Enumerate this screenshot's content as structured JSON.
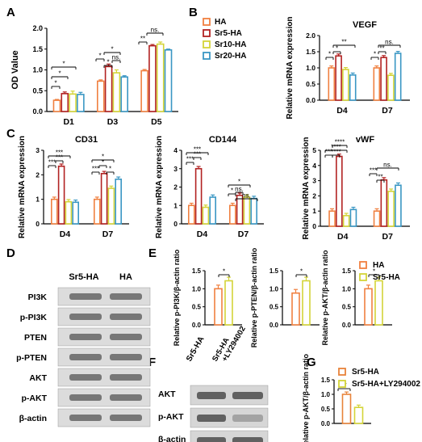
{
  "colors": {
    "HA": "#f08040",
    "Sr5HA": "#b22222",
    "Sr10HA": "#d4d438",
    "Sr20HA": "#3a97c4",
    "G1": "#e8833a"
  },
  "chart_data": [
    {
      "panel": "A",
      "type": "bar",
      "ylabel": "OD Value",
      "ylim": [
        0,
        2.0
      ],
      "yticks": [
        "0.0",
        "0.5",
        "1.0",
        "1.5",
        "2.0"
      ],
      "categories": [
        "D1",
        "D3",
        "D5"
      ],
      "legend": [
        "HA",
        "Sr5-HA",
        "Sr10-HA",
        "Sr20-HA"
      ],
      "series": [
        {
          "name": "HA",
          "values": [
            0.27,
            0.73,
            0.98
          ]
        },
        {
          "name": "Sr5-HA",
          "values": [
            0.43,
            1.08,
            1.58
          ]
        },
        {
          "name": "Sr10-HA",
          "values": [
            0.42,
            0.93,
            1.62
          ]
        },
        {
          "name": "Sr20-HA",
          "values": [
            0.41,
            0.83,
            1.48
          ]
        }
      ],
      "errors": [
        [
          0.02,
          0.04,
          0.07,
          0.05
        ],
        [
          0.03,
          0.06,
          0.07,
          0.03
        ],
        [
          0.03,
          0.03,
          0.05,
          0.02
        ]
      ],
      "annotations": [
        "*",
        "*",
        "*",
        "*",
        "*",
        "*",
        "ns.",
        "*",
        "**",
        "ns."
      ]
    },
    {
      "panel": "B",
      "type": "bar",
      "title": "VEGF",
      "ylabel": "Relative mRNA expression",
      "ylim": [
        0,
        2.0
      ],
      "yticks": [
        "0.0",
        "0.5",
        "1.0",
        "1.5",
        "2.0"
      ],
      "categories": [
        "D4",
        "D7"
      ],
      "series": [
        {
          "name": "HA",
          "values": [
            1.0,
            1.0
          ]
        },
        {
          "name": "Sr5-HA",
          "values": [
            1.37,
            1.32
          ]
        },
        {
          "name": "Sr10-HA",
          "values": [
            0.95,
            0.77
          ]
        },
        {
          "name": "Sr20-HA",
          "values": [
            0.78,
            1.45
          ]
        }
      ],
      "annotations": [
        "*",
        "*",
        "**",
        "*",
        "**",
        "ns."
      ]
    },
    {
      "panel": "C1",
      "type": "bar",
      "title": "CD31",
      "ylabel": "Relative mRNA expression",
      "ylim": [
        0,
        3
      ],
      "yticks": [
        "0",
        "1",
        "2",
        "3"
      ],
      "categories": [
        "D4",
        "D7"
      ],
      "series": [
        {
          "name": "HA",
          "values": [
            1.0,
            1.0
          ]
        },
        {
          "name": "Sr5-HA",
          "values": [
            2.35,
            2.05
          ]
        },
        {
          "name": "Sr10-HA",
          "values": [
            0.9,
            1.45
          ]
        },
        {
          "name": "Sr20-HA",
          "values": [
            0.88,
            1.82
          ]
        }
      ],
      "annotations": [
        "***",
        "***",
        "***",
        "***",
        "*",
        "*",
        "*"
      ]
    },
    {
      "panel": "C2",
      "type": "bar",
      "title": "CD144",
      "ylabel": "Relative mRNA expression",
      "ylim": [
        0,
        4
      ],
      "yticks": [
        "0",
        "1",
        "2",
        "3",
        "4"
      ],
      "categories": [
        "D4",
        "D7"
      ],
      "series": [
        {
          "name": "HA",
          "values": [
            1.0,
            1.0
          ]
        },
        {
          "name": "Sr5-HA",
          "values": [
            3.0,
            1.55
          ]
        },
        {
          "name": "Sr10-HA",
          "values": [
            0.9,
            1.45
          ]
        },
        {
          "name": "Sr20-HA",
          "values": [
            1.45,
            1.38
          ]
        }
      ],
      "annotations": [
        "***",
        "***",
        "***",
        "*",
        "*",
        "ns.",
        "ns."
      ]
    },
    {
      "panel": "C3",
      "type": "bar",
      "title": "vWF",
      "ylabel": "Relative mRNA expression",
      "ylim": [
        0,
        5
      ],
      "yticks": [
        "0",
        "1",
        "2",
        "3",
        "4",
        "5"
      ],
      "categories": [
        "D4",
        "D7"
      ],
      "series": [
        {
          "name": "HA",
          "values": [
            1.0,
            1.0
          ]
        },
        {
          "name": "Sr5-HA",
          "values": [
            4.6,
            3.05
          ]
        },
        {
          "name": "Sr10-HA",
          "values": [
            0.7,
            2.3
          ]
        },
        {
          "name": "Sr20-HA",
          "values": [
            1.1,
            2.7
          ]
        }
      ],
      "annotations": [
        "***",
        "****",
        "****",
        "****",
        "***",
        "**",
        "ns."
      ]
    },
    {
      "panel": "E1",
      "type": "bar",
      "ylabel": "Relative p-PI3K/β-actin ratio",
      "ylim": [
        0,
        1.5
      ],
      "yticks": [
        "0.0",
        "0.5",
        "1.0",
        "1.5"
      ],
      "legend": [
        "HA",
        "Sr5-HA"
      ],
      "series": [
        {
          "name": "HA",
          "values": [
            1.0
          ]
        },
        {
          "name": "Sr5-HA",
          "values": [
            1.22
          ]
        }
      ],
      "annotations": [
        "*"
      ]
    },
    {
      "panel": "E2",
      "type": "bar",
      "ylabel": "Relative p-PTEN/β-actin ratio",
      "ylim": [
        0,
        1.5
      ],
      "yticks": [
        "0.0",
        "0.5",
        "1.0",
        "1.5"
      ],
      "series": [
        {
          "name": "HA",
          "values": [
            0.88
          ]
        },
        {
          "name": "Sr5-HA",
          "values": [
            1.22
          ]
        }
      ],
      "annotations": [
        "*"
      ]
    },
    {
      "panel": "E3",
      "type": "bar",
      "ylabel": "Relative p-AKT/β-actin ratio",
      "ylim": [
        0,
        1.5
      ],
      "yticks": [
        "0.0",
        "0.5",
        "1.0",
        "1.5"
      ],
      "series": [
        {
          "name": "HA",
          "values": [
            1.0
          ]
        },
        {
          "name": "Sr5-HA",
          "values": [
            1.22
          ]
        }
      ],
      "annotations": [
        "*"
      ]
    },
    {
      "panel": "G",
      "type": "bar",
      "ylabel": "Relative p-AKT/β-actin ratio",
      "ylim": [
        0,
        1.5
      ],
      "yticks": [
        "0.0",
        "0.5",
        "1.0",
        "1.5"
      ],
      "legend": [
        "Sr5-HA",
        "Sr5-HA+LY294002"
      ],
      "series": [
        {
          "name": "Sr5-HA",
          "values": [
            1.0
          ]
        },
        {
          "name": "Sr5-HA+LY294002",
          "values": [
            0.55
          ]
        }
      ],
      "annotations": [
        "**"
      ]
    }
  ],
  "blots": {
    "D": {
      "headers": [
        "Sr5-HA",
        "HA"
      ],
      "rows": [
        "PI3K",
        "p-PI3K",
        "PTEN",
        "p-PTEN",
        "AKT",
        "p-AKT",
        "β-actin"
      ]
    },
    "F": {
      "headers": [
        "Sr5-HA",
        "Sr5-HA +LY294002"
      ],
      "rows": [
        "AKT",
        "p-AKT",
        "β-actin"
      ]
    }
  },
  "panel_letters": [
    "A",
    "B",
    "C",
    "D",
    "E",
    "F",
    "G"
  ]
}
